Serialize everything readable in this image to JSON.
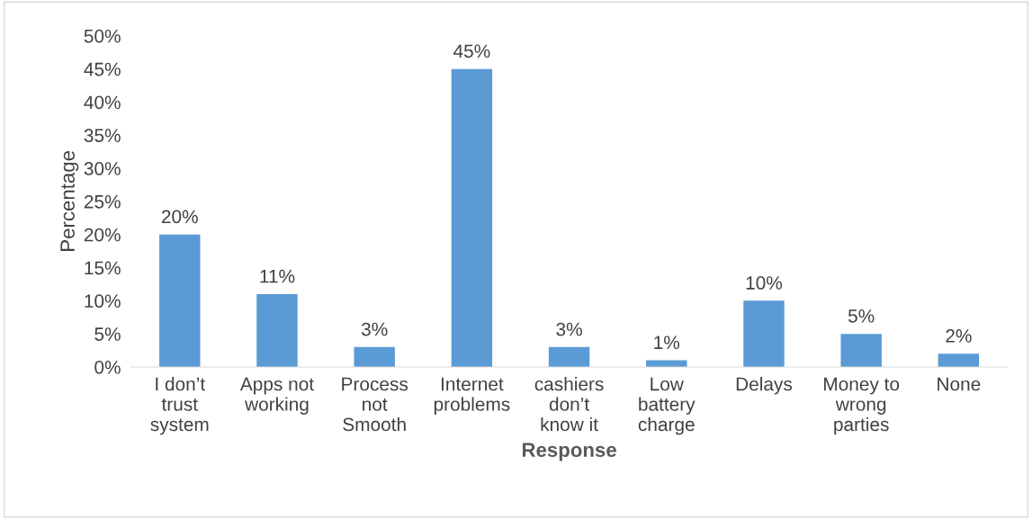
{
  "chart_data": {
    "type": "bar",
    "xlabel": "Response",
    "ylabel": "Percentage",
    "categories": [
      "I don’t\ntrust\nsystem",
      "Apps not\nworking",
      "Process\nnot\nSmooth",
      "Internet\nproblems",
      "cashiers\ndon’t\nknow it",
      "Low\nbattery\ncharge",
      "Delays",
      "Money to\nwrong\nparties",
      "None"
    ],
    "values": [
      20,
      11,
      3,
      45,
      3,
      1,
      10,
      5,
      2
    ],
    "value_labels": [
      "20%",
      "11%",
      "3%",
      "45%",
      "3%",
      "1%",
      "10%",
      "5%",
      "2%"
    ],
    "color": "#5b9bd5",
    "ylim": [
      0,
      50
    ],
    "yticks": [
      {
        "value": 0,
        "label": "0%"
      },
      {
        "value": 5,
        "label": "5%"
      },
      {
        "value": 10,
        "label": "10%"
      },
      {
        "value": 15,
        "label": "15%"
      },
      {
        "value": 20,
        "label": "20%"
      },
      {
        "value": 25,
        "label": "25%"
      },
      {
        "value": 30,
        "label": "30%"
      },
      {
        "value": 35,
        "label": "35%"
      },
      {
        "value": 40,
        "label": "40%"
      },
      {
        "value": 45,
        "label": "45%"
      },
      {
        "value": 50,
        "label": "50%"
      }
    ],
    "grid": false,
    "legend": false
  }
}
